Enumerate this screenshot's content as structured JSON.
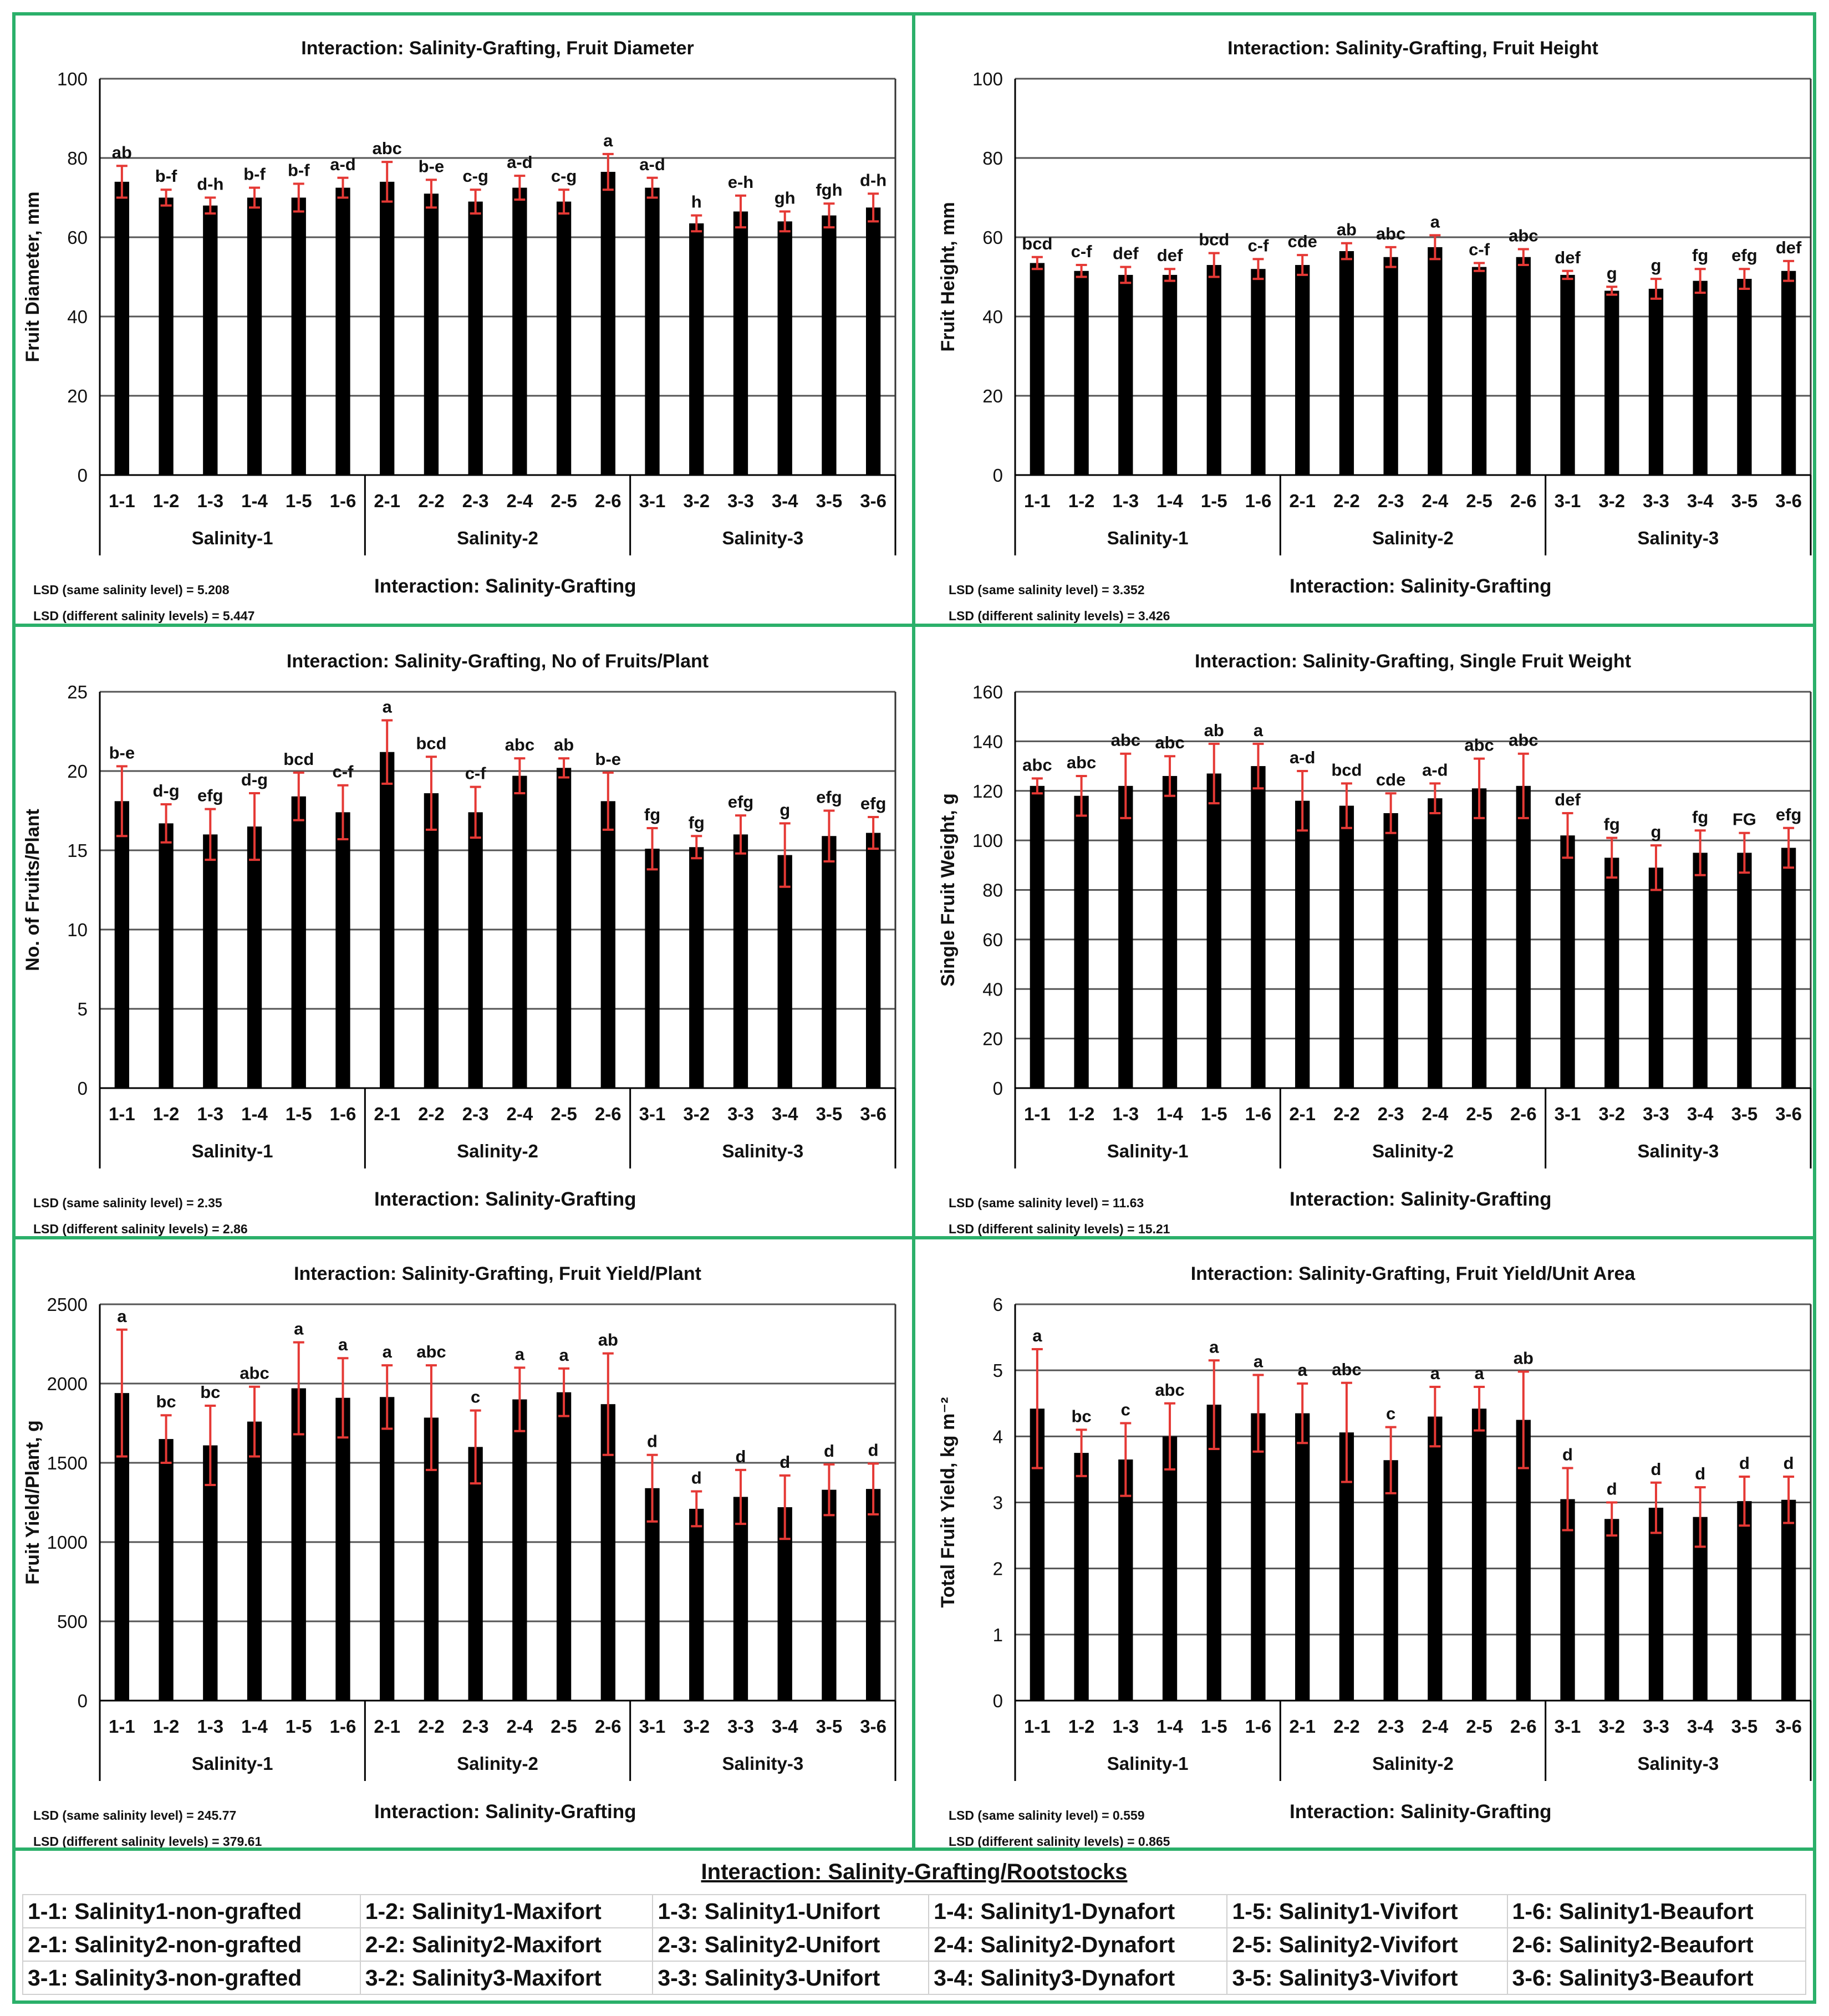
{
  "colors": {
    "frame": "#2bb06a",
    "bar": "#000000",
    "error": "#e53935",
    "text": "#111111"
  },
  "chart_data": [
    {
      "type": "bar",
      "title": "Interaction: Salinity-Grafting, Fruit Diameter",
      "ylabel": "Fruit Diameter, mm",
      "ylim": [
        0,
        100
      ],
      "yticks": [
        0,
        20,
        40,
        60,
        80,
        100
      ],
      "categories": [
        "1-1",
        "1-2",
        "1-3",
        "1-4",
        "1-5",
        "1-6",
        "2-1",
        "2-2",
        "2-3",
        "2-4",
        "2-5",
        "2-6",
        "3-1",
        "3-2",
        "3-3",
        "3-4",
        "3-5",
        "3-6"
      ],
      "groups": [
        "Salinity-1",
        "Salinity-2",
        "Salinity-3"
      ],
      "values": [
        74,
        70,
        68,
        70,
        70,
        72.5,
        74,
        71,
        69,
        72.5,
        69,
        76.5,
        72.5,
        63.5,
        66.5,
        64,
        65.5,
        67.5
      ],
      "errors": [
        4,
        2,
        2,
        2.5,
        3.5,
        2.5,
        5,
        3.5,
        3,
        3,
        3,
        4.5,
        2.5,
        2,
        4,
        2.5,
        3,
        3.5
      ],
      "labels": [
        "ab",
        "b-f",
        "d-h",
        "b-f",
        "b-f",
        "a-d",
        "abc",
        "b-e",
        "c-g",
        "a-d",
        "c-g",
        "a",
        "a-d",
        "h",
        "e-h",
        "gh",
        "fgh",
        "d-h"
      ],
      "xlabel": "Interaction: Salinity-Grafting",
      "lsd_same": "LSD (same salinity level) = 5.208",
      "lsd_diff": "LSD (different salinity levels) = 5.447"
    },
    {
      "type": "bar",
      "title": "Interaction: Salinity-Grafting, Fruit Height",
      "ylabel": "Fruit Height, mm",
      "ylim": [
        0,
        100
      ],
      "yticks": [
        0,
        20,
        40,
        60,
        80,
        100
      ],
      "categories": [
        "1-1",
        "1-2",
        "1-3",
        "1-4",
        "1-5",
        "1-6",
        "2-1",
        "2-2",
        "2-3",
        "2-4",
        "2-5",
        "2-6",
        "3-1",
        "3-2",
        "3-3",
        "3-4",
        "3-5",
        "3-6"
      ],
      "groups": [
        "Salinity-1",
        "Salinity-2",
        "Salinity-3"
      ],
      "values": [
        53.5,
        51.5,
        50.5,
        50.5,
        53,
        52,
        53,
        56.5,
        55,
        57.5,
        52.5,
        55,
        50.5,
        46.5,
        47,
        49,
        49.5,
        51.5
      ],
      "errors": [
        1.5,
        1.5,
        2,
        1.5,
        3,
        2.5,
        2.5,
        2,
        2.5,
        3,
        1,
        2,
        1,
        1,
        2.5,
        3,
        2.5,
        2.5
      ],
      "labels": [
        "bcd",
        "c-f",
        "def",
        "def",
        "bcd",
        "c-f",
        "cde",
        "ab",
        "abc",
        "a",
        "c-f",
        "abc",
        "def",
        "g",
        "g",
        "fg",
        "efg",
        "def"
      ],
      "xlabel": "Interaction: Salinity-Grafting",
      "lsd_same": "LSD (same salinity level) = 3.352",
      "lsd_diff": "LSD (different salinity levels) = 3.426"
    },
    {
      "type": "bar",
      "title": "Interaction: Salinity-Grafting, No of Fruits/Plant",
      "ylabel": "No. of Fruits/Plant",
      "ylim": [
        0,
        25
      ],
      "yticks": [
        0,
        5,
        10,
        15,
        20,
        25
      ],
      "categories": [
        "1-1",
        "1-2",
        "1-3",
        "1-4",
        "1-5",
        "1-6",
        "2-1",
        "2-2",
        "2-3",
        "2-4",
        "2-5",
        "2-6",
        "3-1",
        "3-2",
        "3-3",
        "3-4",
        "3-5",
        "3-6"
      ],
      "groups": [
        "Salinity-1",
        "Salinity-2",
        "Salinity-3"
      ],
      "values": [
        18.1,
        16.7,
        16,
        16.5,
        18.4,
        17.4,
        21.2,
        18.6,
        17.4,
        19.7,
        20.2,
        18.1,
        15.1,
        15.2,
        16,
        14.7,
        15.9,
        16.1
      ],
      "errors": [
        2.2,
        1.2,
        1.6,
        2.1,
        1.5,
        1.7,
        2,
        2.3,
        1.6,
        1.1,
        0.6,
        1.8,
        1.3,
        0.7,
        1.2,
        2,
        1.6,
        1
      ],
      "labels": [
        "b-e",
        "d-g",
        "efg",
        "d-g",
        "bcd",
        "c-f",
        "a",
        "bcd",
        "c-f",
        "abc",
        "ab",
        "b-e",
        "fg",
        "fg",
        "efg",
        "g",
        "efg",
        "efg"
      ],
      "xlabel": "Interaction: Salinity-Grafting",
      "lsd_same": "LSD (same salinity level) = 2.35",
      "lsd_diff": "LSD (different salinity levels) = 2.86"
    },
    {
      "type": "bar",
      "title": "Interaction: Salinity-Grafting, Single Fruit Weight",
      "ylabel": "Single Fruit Weight, g",
      "ylim": [
        0,
        160
      ],
      "yticks": [
        0,
        20,
        40,
        60,
        80,
        100,
        120,
        140,
        160
      ],
      "categories": [
        "1-1",
        "1-2",
        "1-3",
        "1-4",
        "1-5",
        "1-6",
        "2-1",
        "2-2",
        "2-3",
        "2-4",
        "2-5",
        "2-6",
        "3-1",
        "3-2",
        "3-3",
        "3-4",
        "3-5",
        "3-6"
      ],
      "groups": [
        "Salinity-1",
        "Salinity-2",
        "Salinity-3"
      ],
      "values": [
        122,
        118,
        122,
        126,
        127,
        130,
        116,
        114,
        111,
        117,
        121,
        122,
        102,
        93,
        89,
        95,
        95,
        97
      ],
      "errors": [
        3,
        8,
        13,
        8,
        12,
        9,
        12,
        9,
        8,
        6,
        12,
        13,
        9,
        8,
        9,
        9,
        8,
        8
      ],
      "labels": [
        "abc",
        "abc",
        "abc",
        "abc",
        "ab",
        "a",
        "a-d",
        "bcd",
        "cde",
        "a-d",
        "abc",
        "abc",
        "def",
        "fg",
        "g",
        "fg",
        "FG",
        "efg"
      ],
      "xlabel": "Interaction: Salinity-Grafting",
      "lsd_same": "LSD (same salinity level) = 11.63",
      "lsd_diff": "LSD (different salinity levels) = 15.21"
    },
    {
      "type": "bar",
      "title": "Interaction: Salinity-Grafting, Fruit Yield/Plant",
      "ylabel": "Fruit Yield/Plant, g",
      "ylim": [
        0,
        2500
      ],
      "yticks": [
        0,
        500,
        1000,
        1500,
        2000,
        2500
      ],
      "categories": [
        "1-1",
        "1-2",
        "1-3",
        "1-4",
        "1-5",
        "1-6",
        "2-1",
        "2-2",
        "2-3",
        "2-4",
        "2-5",
        "2-6",
        "3-1",
        "3-2",
        "3-3",
        "3-4",
        "3-5",
        "3-6"
      ],
      "groups": [
        "Salinity-1",
        "Salinity-2",
        "Salinity-3"
      ],
      "values": [
        1940,
        1650,
        1610,
        1760,
        1970,
        1910,
        1915,
        1785,
        1600,
        1900,
        1945,
        1870,
        1340,
        1210,
        1285,
        1220,
        1330,
        1335
      ],
      "errors": [
        400,
        150,
        250,
        220,
        290,
        250,
        200,
        330,
        230,
        200,
        150,
        320,
        210,
        110,
        170,
        200,
        160,
        160
      ],
      "labels": [
        "a",
        "bc",
        "bc",
        "abc",
        "a",
        "a",
        "a",
        "abc",
        "c",
        "a",
        "a",
        "ab",
        "d",
        "d",
        "d",
        "d",
        "d",
        "d"
      ],
      "xlabel": "Interaction: Salinity-Grafting",
      "lsd_same": "LSD (same salinity level) = 245.77",
      "lsd_diff": "LSD (different salinity levels) = 379.61"
    },
    {
      "type": "bar",
      "title": "Interaction: Salinity-Grafting, Fruit Yield/Unit Area",
      "ylabel": "Total Fruit Yield, kg m⁻²",
      "ylim": [
        0,
        6
      ],
      "yticks": [
        0,
        1,
        2,
        3,
        4,
        5,
        6
      ],
      "categories": [
        "1-1",
        "1-2",
        "1-3",
        "1-4",
        "1-5",
        "1-6",
        "2-1",
        "2-2",
        "2-3",
        "2-4",
        "2-5",
        "2-6",
        "3-1",
        "3-2",
        "3-3",
        "3-4",
        "3-5",
        "3-6"
      ],
      "groups": [
        "Salinity-1",
        "Salinity-2",
        "Salinity-3"
      ],
      "values": [
        4.42,
        3.75,
        3.65,
        4,
        4.48,
        4.35,
        4.35,
        4.06,
        3.64,
        4.3,
        4.42,
        4.25,
        3.05,
        2.75,
        2.92,
        2.78,
        3.02,
        3.04
      ],
      "errors": [
        0.9,
        0.35,
        0.55,
        0.5,
        0.67,
        0.58,
        0.45,
        0.75,
        0.5,
        0.45,
        0.33,
        0.73,
        0.47,
        0.25,
        0.38,
        0.45,
        0.37,
        0.35
      ],
      "labels": [
        "a",
        "bc",
        "c",
        "abc",
        "a",
        "a",
        "a",
        "abc",
        "c",
        "a",
        "a",
        "ab",
        "d",
        "d",
        "d",
        "d",
        "d",
        "d"
      ],
      "xlabel": "Interaction: Salinity-Grafting",
      "lsd_same": "LSD (same salinity level) = 0.559",
      "lsd_diff": "LSD (different salinity levels) = 0.865"
    }
  ],
  "legend": {
    "title": "Interaction: Salinity-Grafting/Rootstocks",
    "rows": [
      [
        "1-1: Salinity1-non-grafted",
        "1-2: Salinity1-Maxifort",
        "1-3: Salinity1-Unifort",
        "1-4: Salinity1-Dynafort",
        "1-5: Salinity1-Vivifort",
        "1-6: Salinity1-Beaufort"
      ],
      [
        "2-1: Salinity2-non-grafted",
        "2-2: Salinity2-Maxifort",
        "2-3: Salinity2-Unifort",
        "2-4: Salinity2-Dynafort",
        "2-5: Salinity2-Vivifort",
        "2-6: Salinity2-Beaufort"
      ],
      [
        "3-1: Salinity3-non-grafted",
        "3-2: Salinity3-Maxifort",
        "3-3: Salinity3-Unifort",
        "3-4: Salinity3-Dynafort",
        "3-5: Salinity3-Vivifort",
        "3-6: Salinity3-Beaufort"
      ]
    ]
  }
}
